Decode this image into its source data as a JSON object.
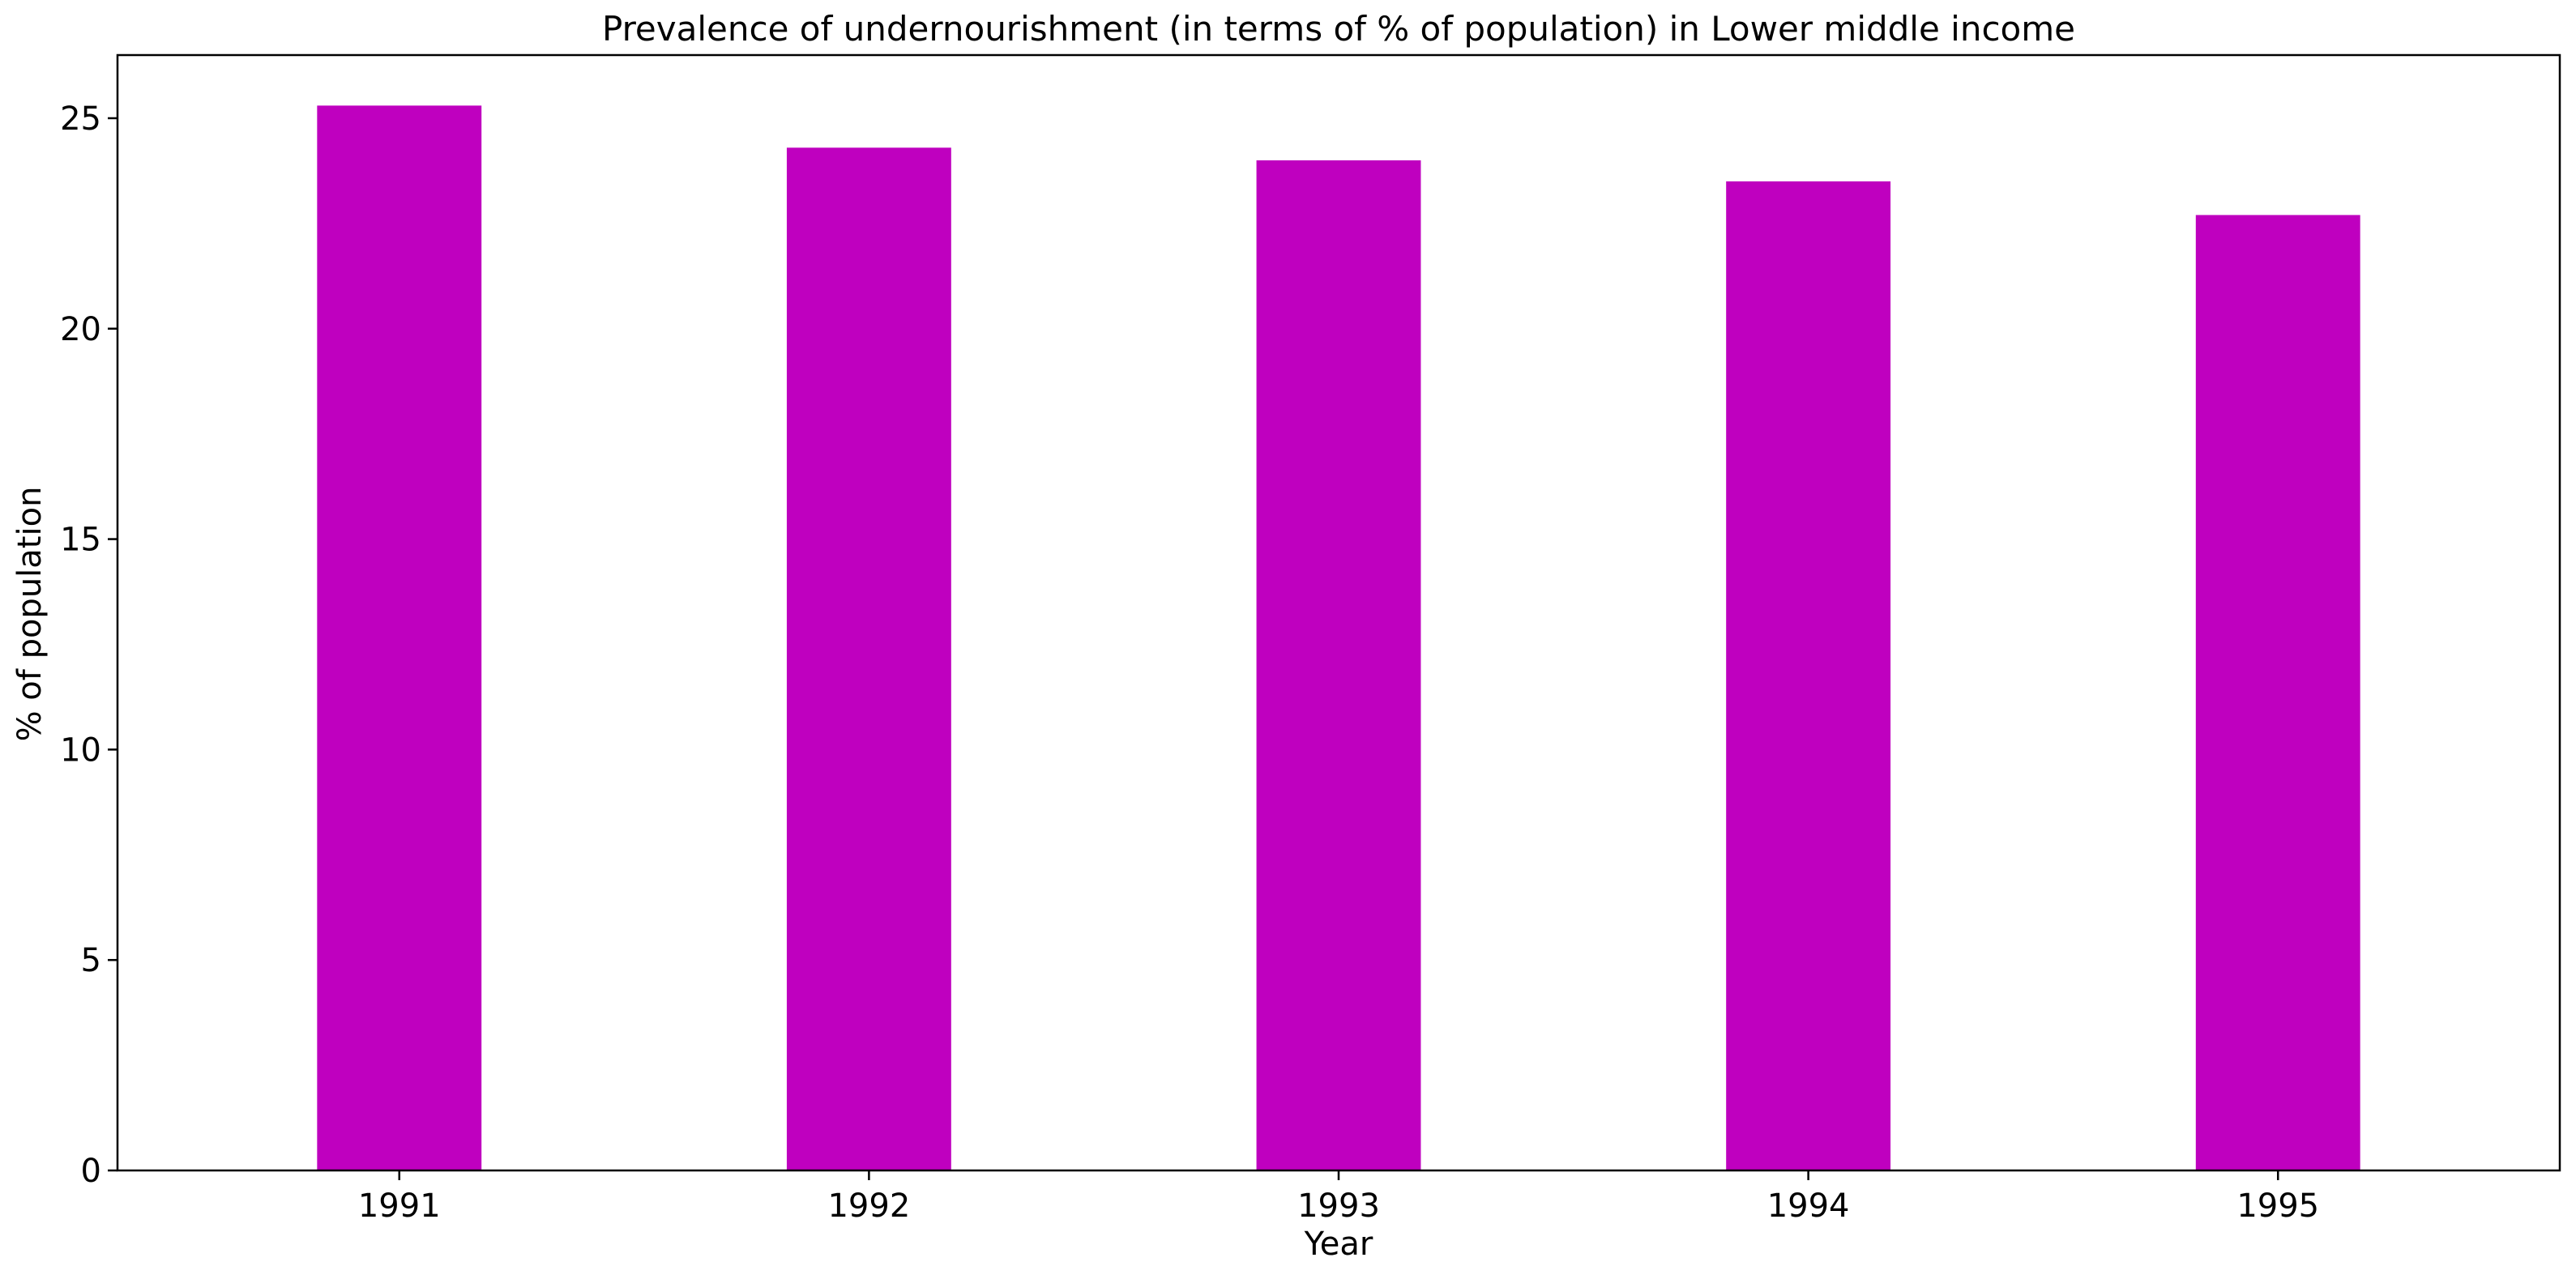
{
  "chart_data": {
    "type": "bar",
    "title": "Prevalence of undernourishment (in terms of % of population) in Lower middle income",
    "xlabel": "Year",
    "ylabel": "% of population",
    "categories": [
      "1991",
      "1992",
      "1993",
      "1994",
      "1995"
    ],
    "series": [
      {
        "values": [
          25.3,
          24.3,
          24.0,
          23.5,
          22.7
        ]
      }
    ],
    "ylim": [
      0,
      26.5
    ],
    "yticks": [
      0,
      5,
      10,
      15,
      20,
      25
    ],
    "grid": false,
    "legend": "none",
    "bar_color": "#bf00bf"
  }
}
